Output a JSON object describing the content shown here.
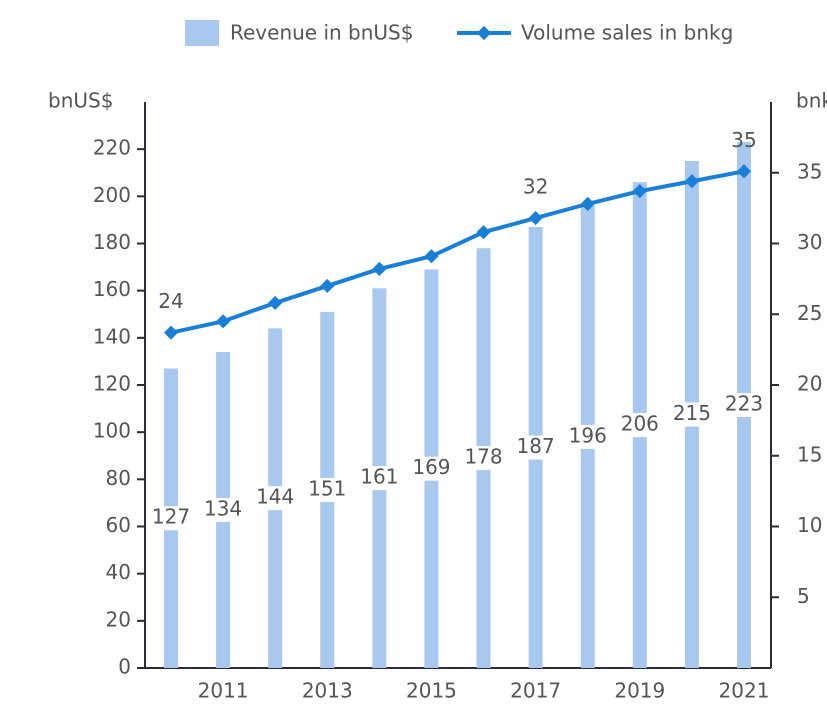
{
  "chart_data": {
    "type": "bar-line",
    "y_label": "bnUS$",
    "y2_label": "bnkg",
    "categories": [
      null,
      "2011",
      null,
      "2013",
      null,
      "2015",
      null,
      "2017",
      null,
      "2019",
      null,
      "2021"
    ],
    "series": [
      {
        "name": "Revenue in bnUS$",
        "type": "bar",
        "color": "#a8c8f0",
        "values": [
          127,
          134,
          144,
          151,
          161,
          169,
          178,
          187,
          196,
          206,
          215,
          223
        ]
      },
      {
        "name": "Volume sales in bnkg",
        "type": "line",
        "axis": "y2",
        "color": "#1a7fd6",
        "values": [
          23.7,
          24.5,
          25.8,
          27.0,
          28.2,
          29.1,
          30.8,
          31.8,
          32.8,
          33.7,
          34.4,
          35.1
        ],
        "value_labels": [
          "24",
          null,
          null,
          null,
          null,
          null,
          null,
          "32",
          null,
          null,
          null,
          "35"
        ]
      }
    ],
    "ylim": [
      0,
      240
    ],
    "yticks": [
      0,
      20,
      40,
      60,
      80,
      100,
      120,
      140,
      160,
      180,
      200,
      220
    ],
    "y2lim": [
      0,
      40
    ],
    "y2ticks": [
      5,
      10,
      15,
      20,
      25,
      30,
      35
    ]
  }
}
